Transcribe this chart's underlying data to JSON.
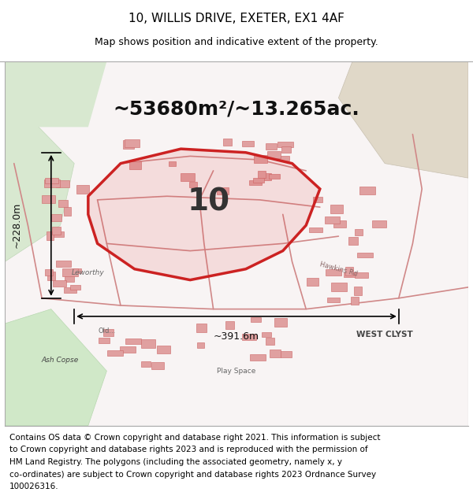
{
  "title_line1": "10, WILLIS DRIVE, EXETER, EX1 4AF",
  "title_line2": "Map shows position and indicative extent of the property.",
  "area_text": "~53680m²/~13.265ac.",
  "label_number": "10",
  "dim_horizontal": "~391.6m",
  "dim_vertical": "~228.0m",
  "footer_lines": [
    "Contains OS data © Crown copyright and database right 2021. This information is subject",
    "to Crown copyright and database rights 2023 and is reproduced with the permission of",
    "HM Land Registry. The polygons (including the associated geometry, namely x, y",
    "co-ordinates) are subject to Crown copyright and database rights 2023 Ordnance Survey",
    "100026316."
  ],
  "bg_color": "#f8f4f4",
  "red_polygon_color": "#cc2222",
  "street_color": "#d08888",
  "bld_color": "#e0a0a0",
  "bld_edge": "#cc6666",
  "title_fontsize": 11,
  "subtitle_fontsize": 9,
  "area_fontsize": 18,
  "label_fontsize": 28,
  "dim_fontsize": 9,
  "footer_fontsize": 7.5,
  "fig_width": 6.0,
  "fig_height": 6.25
}
